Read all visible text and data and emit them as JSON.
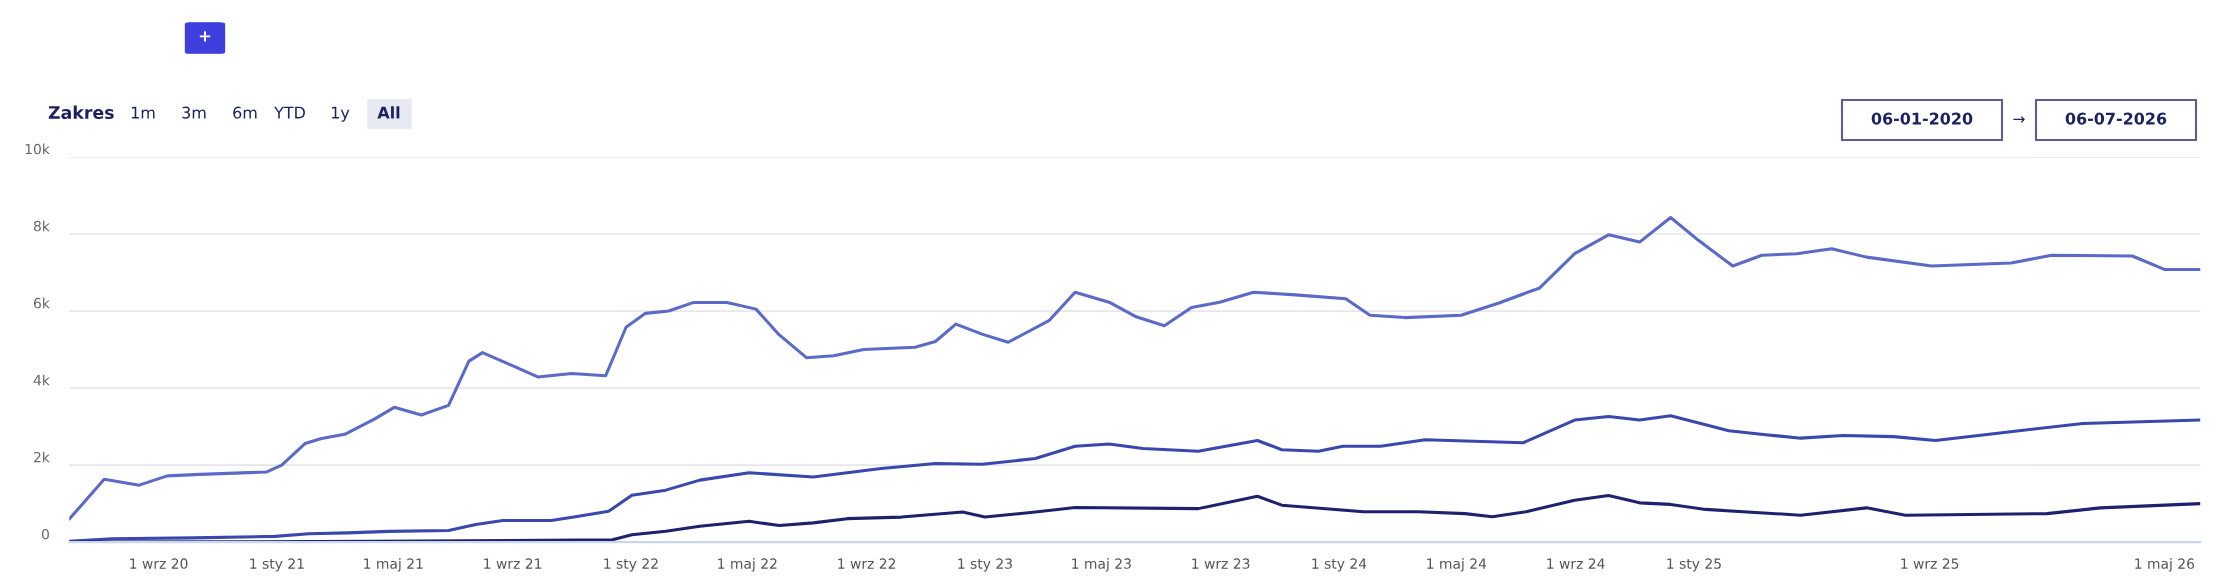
{
  "chart_data": {
    "type": "line",
    "annotations": [
      "+",
      "Zakres",
      "1m",
      "3m",
      "6m",
      "YTD",
      "1y",
      "All",
      "06-01-2020",
      "→",
      "06-07-2026"
    ],
    "xlim": [
      "2020-06-01",
      "2026-06-07"
    ],
    "xticks": [
      {
        "value": "2020-09-01",
        "label": "1 wrz 20"
      },
      {
        "value": "2021-01-01",
        "label": "1 sty 21"
      },
      {
        "value": "2021-05-01",
        "label": "1 maj 21"
      },
      {
        "value": "2021-09-01",
        "label": "1 wrz 21"
      },
      {
        "value": "2022-01-01",
        "label": "1 sty 22"
      },
      {
        "value": "2022-05-01",
        "label": "1 maj 22"
      },
      {
        "value": "2022-09-01",
        "label": "1 wrz 22"
      },
      {
        "value": "2023-01-01",
        "label": "1 sty 23"
      },
      {
        "value": "2023-05-01",
        "label": "1 maj 23"
      },
      {
        "value": "2023-09-01",
        "label": "1 wrz 23"
      },
      {
        "value": "2024-01-01",
        "label": "1 sty 24"
      },
      {
        "value": "2024-05-01",
        "label": "1 maj 24"
      },
      {
        "value": "2024-09-01",
        "label": "1 wrz 24"
      },
      {
        "value": "2025-01-01",
        "label": "1 sty 25"
      },
      {
        "value": "2025-09-01",
        "label": "1 wrz 25"
      },
      {
        "value": "2026-05-01",
        "label": "1 maj 26"
      }
    ],
    "ylim": [
      0,
      10000
    ],
    "yticks": [
      0,
      {
        "value": 2000,
        "label": "2k"
      },
      {
        "value": 4000,
        "label": "4k"
      },
      {
        "value": 6000,
        "label": "6k"
      },
      {
        "value": 8000,
        "label": "8k"
      },
      {
        "value": 10000,
        "label": "10k"
      }
    ],
    "grid": "y",
    "legend": false,
    "marker": "none",
    "line_style": "solid",
    "series": [
      {
        "color": "#5b6ac6",
        "x": [
          "2020-06-01",
          "2020-07-07",
          "2020-08-12",
          "2020-09-10",
          "2020-10-14",
          "2020-12-21",
          "2021-01-06",
          "2021-01-30",
          "2021-02-16",
          "2021-03-12",
          "2021-04-12",
          "2021-05-02",
          "2021-05-30",
          "2021-06-27",
          "2021-07-18",
          "2021-08-01",
          "2021-08-30",
          "2021-09-27",
          "2021-11-01",
          "2021-12-06",
          "2021-12-27",
          "2022-01-16",
          "2022-02-09",
          "2022-03-06",
          "2022-04-10",
          "2022-05-10",
          "2022-06-03",
          "2022-07-01",
          "2022-07-29",
          "2022-08-29",
          "2022-10-21",
          "2022-11-11",
          "2022-12-02",
          "2022-12-29",
          "2023-01-25",
          "2023-03-08",
          "2023-04-04",
          "2023-05-09",
          "2023-06-06",
          "2023-07-05",
          "2023-08-02",
          "2023-08-31",
          "2023-10-05",
          "2023-11-17",
          "2024-01-08",
          "2024-02-02",
          "2024-03-09",
          "2024-05-06",
          "2024-06-14",
          "2024-07-26",
          "2024-08-31",
          "2024-10-05",
          "2024-11-06",
          "2024-12-08",
          "2025-01-06",
          "2025-02-10",
          "2025-03-12",
          "2025-04-17",
          "2025-05-23",
          "2025-06-28",
          "2025-09-03",
          "2025-11-24",
          "2026-01-05",
          "2026-03-29",
          "2026-05-01",
          "2026-06-07"
        ],
        "values": [
          600,
          1630,
          1480,
          1720,
          1760,
          1820,
          2000,
          2560,
          2690,
          2800,
          3200,
          3500,
          3300,
          3550,
          4700,
          4920,
          4600,
          4290,
          4380,
          4320,
          5580,
          5940,
          6000,
          6220,
          6220,
          6050,
          5380,
          4790,
          4840,
          5000,
          5060,
          5210,
          5660,
          5400,
          5190,
          5750,
          6490,
          6230,
          5850,
          5620,
          6090,
          6230,
          6490,
          6420,
          6320,
          5890,
          5830,
          5890,
          6210,
          6600,
          7490,
          7980,
          7790,
          8430,
          7830,
          7170,
          7450,
          7490,
          7620,
          7400,
          7170,
          7250,
          7450,
          7430,
          7080,
          7080
        ]
      },
      {
        "color": "#3a48ae",
        "x": [
          "2020-06-01",
          "2020-07-15",
          "2020-10-06",
          "2020-12-30",
          "2021-02-03",
          "2021-03-15",
          "2021-04-26",
          "2021-06-27",
          "2021-07-25",
          "2021-08-22",
          "2021-10-11",
          "2021-11-08",
          "2021-12-09",
          "2022-01-02",
          "2022-02-06",
          "2022-03-13",
          "2022-05-03",
          "2022-07-08",
          "2022-09-16",
          "2022-11-11",
          "2022-12-29",
          "2023-02-22",
          "2023-04-04",
          "2023-05-09",
          "2023-06-13",
          "2023-08-09",
          "2023-10-09",
          "2023-11-03",
          "2023-12-11",
          "2024-01-05",
          "2024-02-13",
          "2024-03-30",
          "2024-07-09",
          "2024-08-31",
          "2024-10-05",
          "2024-11-06",
          "2024-12-08",
          "2025-02-06",
          "2025-03-16",
          "2025-04-21",
          "2025-06-04",
          "2025-07-26",
          "2025-09-07",
          "2025-10-28",
          "2026-02-06",
          "2026-06-07"
        ],
        "values": [
          20,
          90,
          110,
          150,
          220,
          240,
          280,
          300,
          460,
          560,
          560,
          670,
          800,
          1220,
          1350,
          1610,
          1800,
          1690,
          1910,
          2040,
          2020,
          2170,
          2490,
          2550,
          2430,
          2360,
          2640,
          2400,
          2360,
          2490,
          2490,
          2660,
          2580,
          3170,
          3260,
          3170,
          3280,
          2890,
          2790,
          2700,
          2770,
          2740,
          2640,
          2790,
          3080,
          3170
        ]
      },
      {
        "color": "#1e226e",
        "x": [
          "2020-06-01",
          "2021-04-12",
          "2021-08-30",
          "2021-12-13",
          "2022-01-02",
          "2022-02-06",
          "2022-03-13",
          "2022-05-03",
          "2022-06-03",
          "2022-07-08",
          "2022-08-12",
          "2022-10-07",
          "2022-12-09",
          "2023-01-01",
          "2023-02-22",
          "2023-04-04",
          "2023-08-09",
          "2023-10-09",
          "2023-11-03",
          "2024-01-26",
          "2024-03-23",
          "2024-05-10",
          "2024-06-07",
          "2024-07-12",
          "2024-08-31",
          "2024-10-05",
          "2024-11-06",
          "2024-12-08",
          "2025-01-13",
          "2025-04-21",
          "2025-06-28",
          "2025-08-07",
          "2025-12-31",
          "2026-02-24",
          "2026-06-07"
        ],
        "values": [
          0,
          20,
          40,
          60,
          190,
          280,
          410,
          540,
          430,
          500,
          610,
          650,
          780,
          650,
          780,
          900,
          870,
          1190,
          960,
          790,
          790,
          740,
          660,
          790,
          1090,
          1210,
          1020,
          980,
          850,
          700,
          890,
          700,
          740,
          890,
          1000
        ]
      }
    ]
  }
}
